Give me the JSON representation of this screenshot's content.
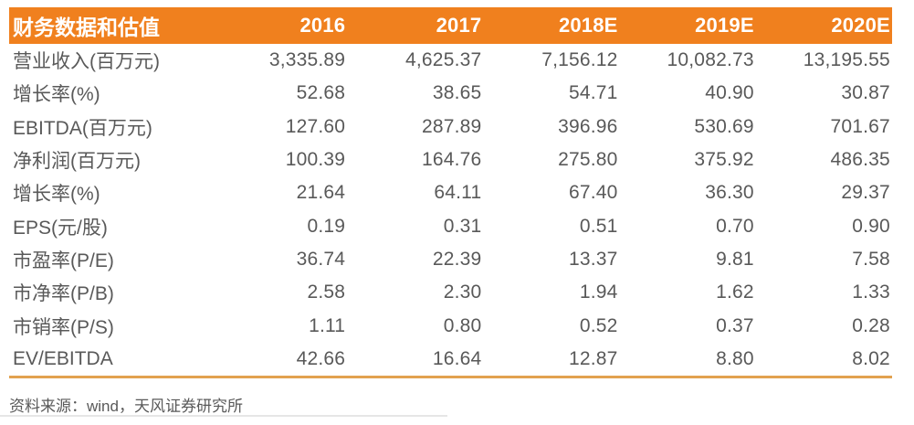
{
  "table": {
    "header": {
      "title": "财务数据和估值",
      "years": [
        "2016",
        "2017",
        "2018E",
        "2019E",
        "2020E"
      ]
    },
    "rows": [
      {
        "label": "营业收入(百万元)",
        "values": [
          "3,335.89",
          "4,625.37",
          "7,156.12",
          "10,082.73",
          "13,195.55"
        ]
      },
      {
        "label": "增长率(%)",
        "values": [
          "52.68",
          "38.65",
          "54.71",
          "40.90",
          "30.87"
        ]
      },
      {
        "label": "EBITDA(百万元)",
        "values": [
          "127.60",
          "287.89",
          "396.96",
          "530.69",
          "701.67"
        ]
      },
      {
        "label": "净利润(百万元)",
        "values": [
          "100.39",
          "164.76",
          "275.80",
          "375.92",
          "486.35"
        ]
      },
      {
        "label": "增长率(%)",
        "values": [
          "21.64",
          "64.11",
          "67.40",
          "36.30",
          "29.37"
        ]
      },
      {
        "label": "EPS(元/股)",
        "values": [
          "0.19",
          "0.31",
          "0.51",
          "0.70",
          "0.90"
        ]
      },
      {
        "label": "市盈率(P/E)",
        "values": [
          "36.74",
          "22.39",
          "13.37",
          "9.81",
          "7.58"
        ]
      },
      {
        "label": "市净率(P/B)",
        "values": [
          "2.58",
          "2.30",
          "1.94",
          "1.62",
          "1.33"
        ]
      },
      {
        "label": "市销率(P/S)",
        "values": [
          "1.11",
          "0.80",
          "0.52",
          "0.37",
          "0.28"
        ]
      },
      {
        "label": "EV/EBITDA",
        "values": [
          "42.66",
          "16.64",
          "12.87",
          "8.80",
          "8.02"
        ]
      }
    ]
  },
  "footer": {
    "source_note": "资料来源：wind，天风证券研究所"
  },
  "colors": {
    "header_bg": "#F0801E",
    "header_text": "#FFFFFF",
    "body_text": "#595959",
    "divider": "#E2A14F"
  }
}
